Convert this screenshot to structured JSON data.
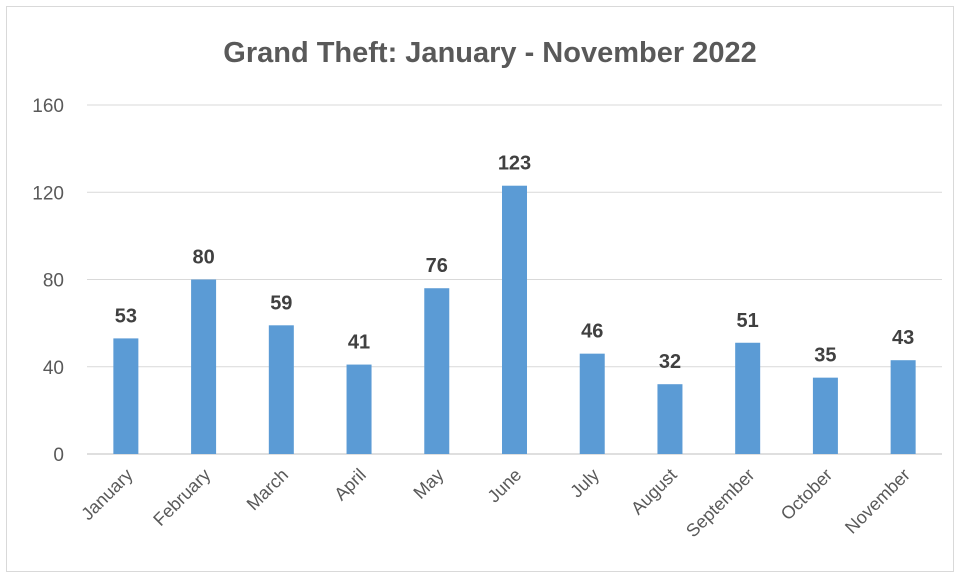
{
  "chart_data": {
    "type": "bar",
    "title": "Grand Theft: January - November 2022",
    "xlabel": "",
    "ylabel": "",
    "categories": [
      "January",
      "February",
      "March",
      "April",
      "May",
      "June",
      "July",
      "August",
      "September",
      "October",
      "November"
    ],
    "values": [
      53,
      80,
      59,
      41,
      76,
      123,
      46,
      32,
      51,
      35,
      43
    ],
    "ylim": [
      0,
      160
    ],
    "yticks": [
      0,
      40,
      80,
      120,
      160
    ],
    "grid": true,
    "legend": "none",
    "data_labels": true,
    "colors": {
      "bar": "#5b9bd5",
      "grid": "#d9d9d9",
      "text": "#595959",
      "label": "#404040"
    }
  }
}
